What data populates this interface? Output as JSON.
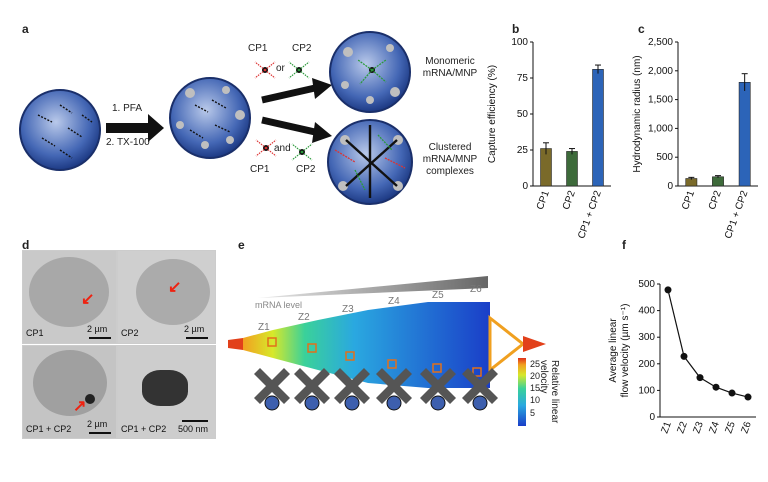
{
  "panels": {
    "a": "a",
    "b": "b",
    "c": "c",
    "d": "d",
    "e": "e",
    "f": "f"
  },
  "panel_a": {
    "step1": "1. PFA",
    "step2": "2. TX-100",
    "cp1_top": "CP1",
    "cp2_top": "CP2",
    "or": "or",
    "cp1_bottom": "CP1",
    "cp2_bottom": "CP2",
    "and": "and",
    "result_top_line1": "Monomeric",
    "result_top_line2": "mRNA/MNP",
    "result_bottom_line1": "Clustered",
    "result_bottom_line2": "mRNA/MNP",
    "result_bottom_line3": "complexes"
  },
  "panel_d": {
    "tl_label": "CP1",
    "tl_scale": "2 µm",
    "tr_label": "CP2",
    "tr_scale": "2 µm",
    "bl_label": "CP1 + CP2",
    "bl_scale": "2 µm",
    "br_label": "CP1 + CP2",
    "br_scale": "500 nm"
  },
  "panel_e": {
    "mrna_level": "mRNA level",
    "zones": [
      "Z1",
      "Z2",
      "Z3",
      "Z4",
      "Z5",
      "Z6"
    ],
    "colorbar_ticks": [
      "25",
      "20",
      "15",
      "10",
      "5"
    ],
    "colorbar_label_1": "Relative linear",
    "colorbar_label_2": "velocity"
  },
  "chart_data": [
    {
      "id": "b",
      "type": "bar",
      "categories": [
        "CP1",
        "CP2",
        "CP1 + CP2"
      ],
      "values": [
        26,
        24,
        81
      ],
      "errors": [
        4,
        2,
        3
      ],
      "ylabel": "Capture efficiency (%)",
      "ylim": [
        0,
        100
      ],
      "yticks": [
        "0",
        "25",
        "50",
        "75",
        "100"
      ],
      "colors": [
        "#7a6a2a",
        "#3d6a3a",
        "#2c64b8"
      ]
    },
    {
      "id": "c",
      "type": "bar",
      "categories": [
        "CP1",
        "CP2",
        "CP1 + CP2"
      ],
      "values": [
        130,
        160,
        1800
      ],
      "errors": [
        20,
        20,
        150
      ],
      "ylabel": "Hydrodynamic radius (nm)",
      "ylim": [
        0,
        2500
      ],
      "yticks": [
        "0",
        "500",
        "1,000",
        "1,500",
        "2,000",
        "2,500"
      ],
      "colors": [
        "#7a6a2a",
        "#3d6a3a",
        "#2c64b8"
      ]
    },
    {
      "id": "f",
      "type": "line",
      "categories": [
        "Z1",
        "Z2",
        "Z3",
        "Z4",
        "Z5",
        "Z6"
      ],
      "values": [
        478,
        228,
        148,
        112,
        90,
        75
      ],
      "ylabel": "Average linear flow velocity (µm s⁻¹)",
      "ylabel_line1": "Average linear",
      "ylabel_line2": "flow velocity (µm s⁻¹)",
      "ylim": [
        0,
        500
      ],
      "yticks": [
        "0",
        "100",
        "200",
        "300",
        "400",
        "500"
      ]
    }
  ]
}
